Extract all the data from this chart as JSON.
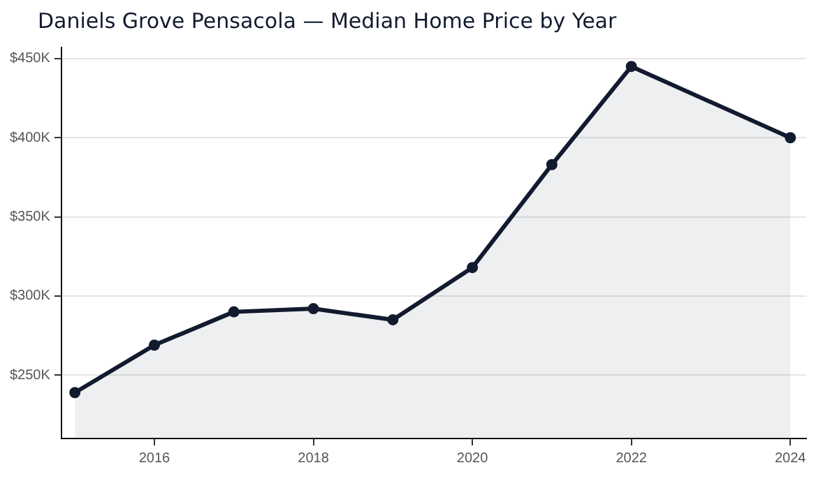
{
  "chart_data": {
    "type": "area",
    "title": "Daniels Grove Pensacola — Median Home Price by Year",
    "x": [
      2015,
      2016,
      2017,
      2018,
      2019,
      2020,
      2021,
      2022,
      2024
    ],
    "series": [
      {
        "color": "#111a2e",
        "values": [
          239,
          269,
          290,
          292,
          285,
          318,
          383,
          445,
          400
        ]
      }
    ],
    "xlim": [
      2014.83,
      2024.2
    ],
    "xticks": [
      2016,
      2018,
      2020,
      2022,
      2024
    ],
    "ylim": [
      210,
      457
    ],
    "yticks": [
      {
        "value": 250,
        "label": "$250K"
      },
      {
        "value": 300,
        "label": "$300K"
      },
      {
        "value": 350,
        "label": "$350K"
      },
      {
        "value": 400,
        "label": "$400K"
      },
      {
        "value": 450,
        "label": "$450K"
      }
    ],
    "grid": "y",
    "legend": false,
    "marker": "circle",
    "line_style": "solid"
  }
}
